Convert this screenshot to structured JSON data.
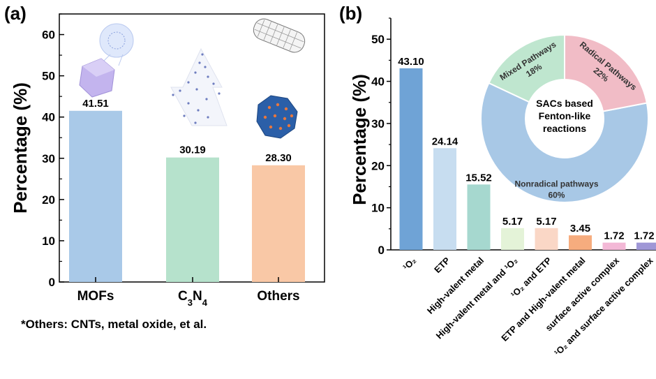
{
  "chart_data": [
    {
      "type": "bar",
      "panel": "(a)",
      "ylabel": "Percentage (%)",
      "ylim": [
        0,
        65
      ],
      "yticks": [
        0,
        10,
        20,
        30,
        40,
        50,
        60
      ],
      "categories": [
        "MOFs",
        "C3N4",
        "Others"
      ],
      "values": [
        41.51,
        30.19,
        28.3
      ],
      "value_labels": [
        "41.51",
        "30.19",
        "28.30"
      ],
      "colors": [
        "#a9c9e8",
        "#b6e2cc",
        "#f9c8a6"
      ],
      "footnote": "*Others: CNTs, metal oxide, et al."
    },
    {
      "type": "bar",
      "panel": "(b)",
      "ylabel": "Percentage (%)",
      "ylim": [
        0,
        55
      ],
      "yticks": [
        0,
        10,
        20,
        30,
        40,
        50
      ],
      "categories": [
        "¹O₂",
        "ETP",
        "High-valent metal",
        "High-valent metal and ¹O₂",
        "¹O₂ and ETP",
        "ETP and High-valent metal",
        "surface active complex",
        "¹O₂ and surface active complex"
      ],
      "values": [
        43.1,
        24.14,
        15.52,
        5.17,
        5.17,
        3.45,
        1.72,
        1.72
      ],
      "value_labels": [
        "43.10",
        "24.14",
        "15.52",
        "5.17",
        "5.17",
        "3.45",
        "1.72",
        "1.72"
      ],
      "colors": [
        "#6fa3d6",
        "#c7ddf0",
        "#a6d8cf",
        "#e4f3d8",
        "#fad7c6",
        "#f6ac7e",
        "#f3b8d6",
        "#9f97d6"
      ]
    },
    {
      "type": "pie",
      "center_label": [
        "SACs based",
        "Fenton-like",
        "reactions"
      ],
      "slices": [
        {
          "name": "Nonradical pathways",
          "value": 60,
          "label": "60%",
          "color": "#a8c8e6"
        },
        {
          "name": "Mixed Pathways",
          "value": 18,
          "label": "18%",
          "color": "#bfe6cf"
        },
        {
          "name": "Radical Pathways",
          "value": 22,
          "label": "22%",
          "color": "#f1bcc6"
        }
      ]
    }
  ]
}
